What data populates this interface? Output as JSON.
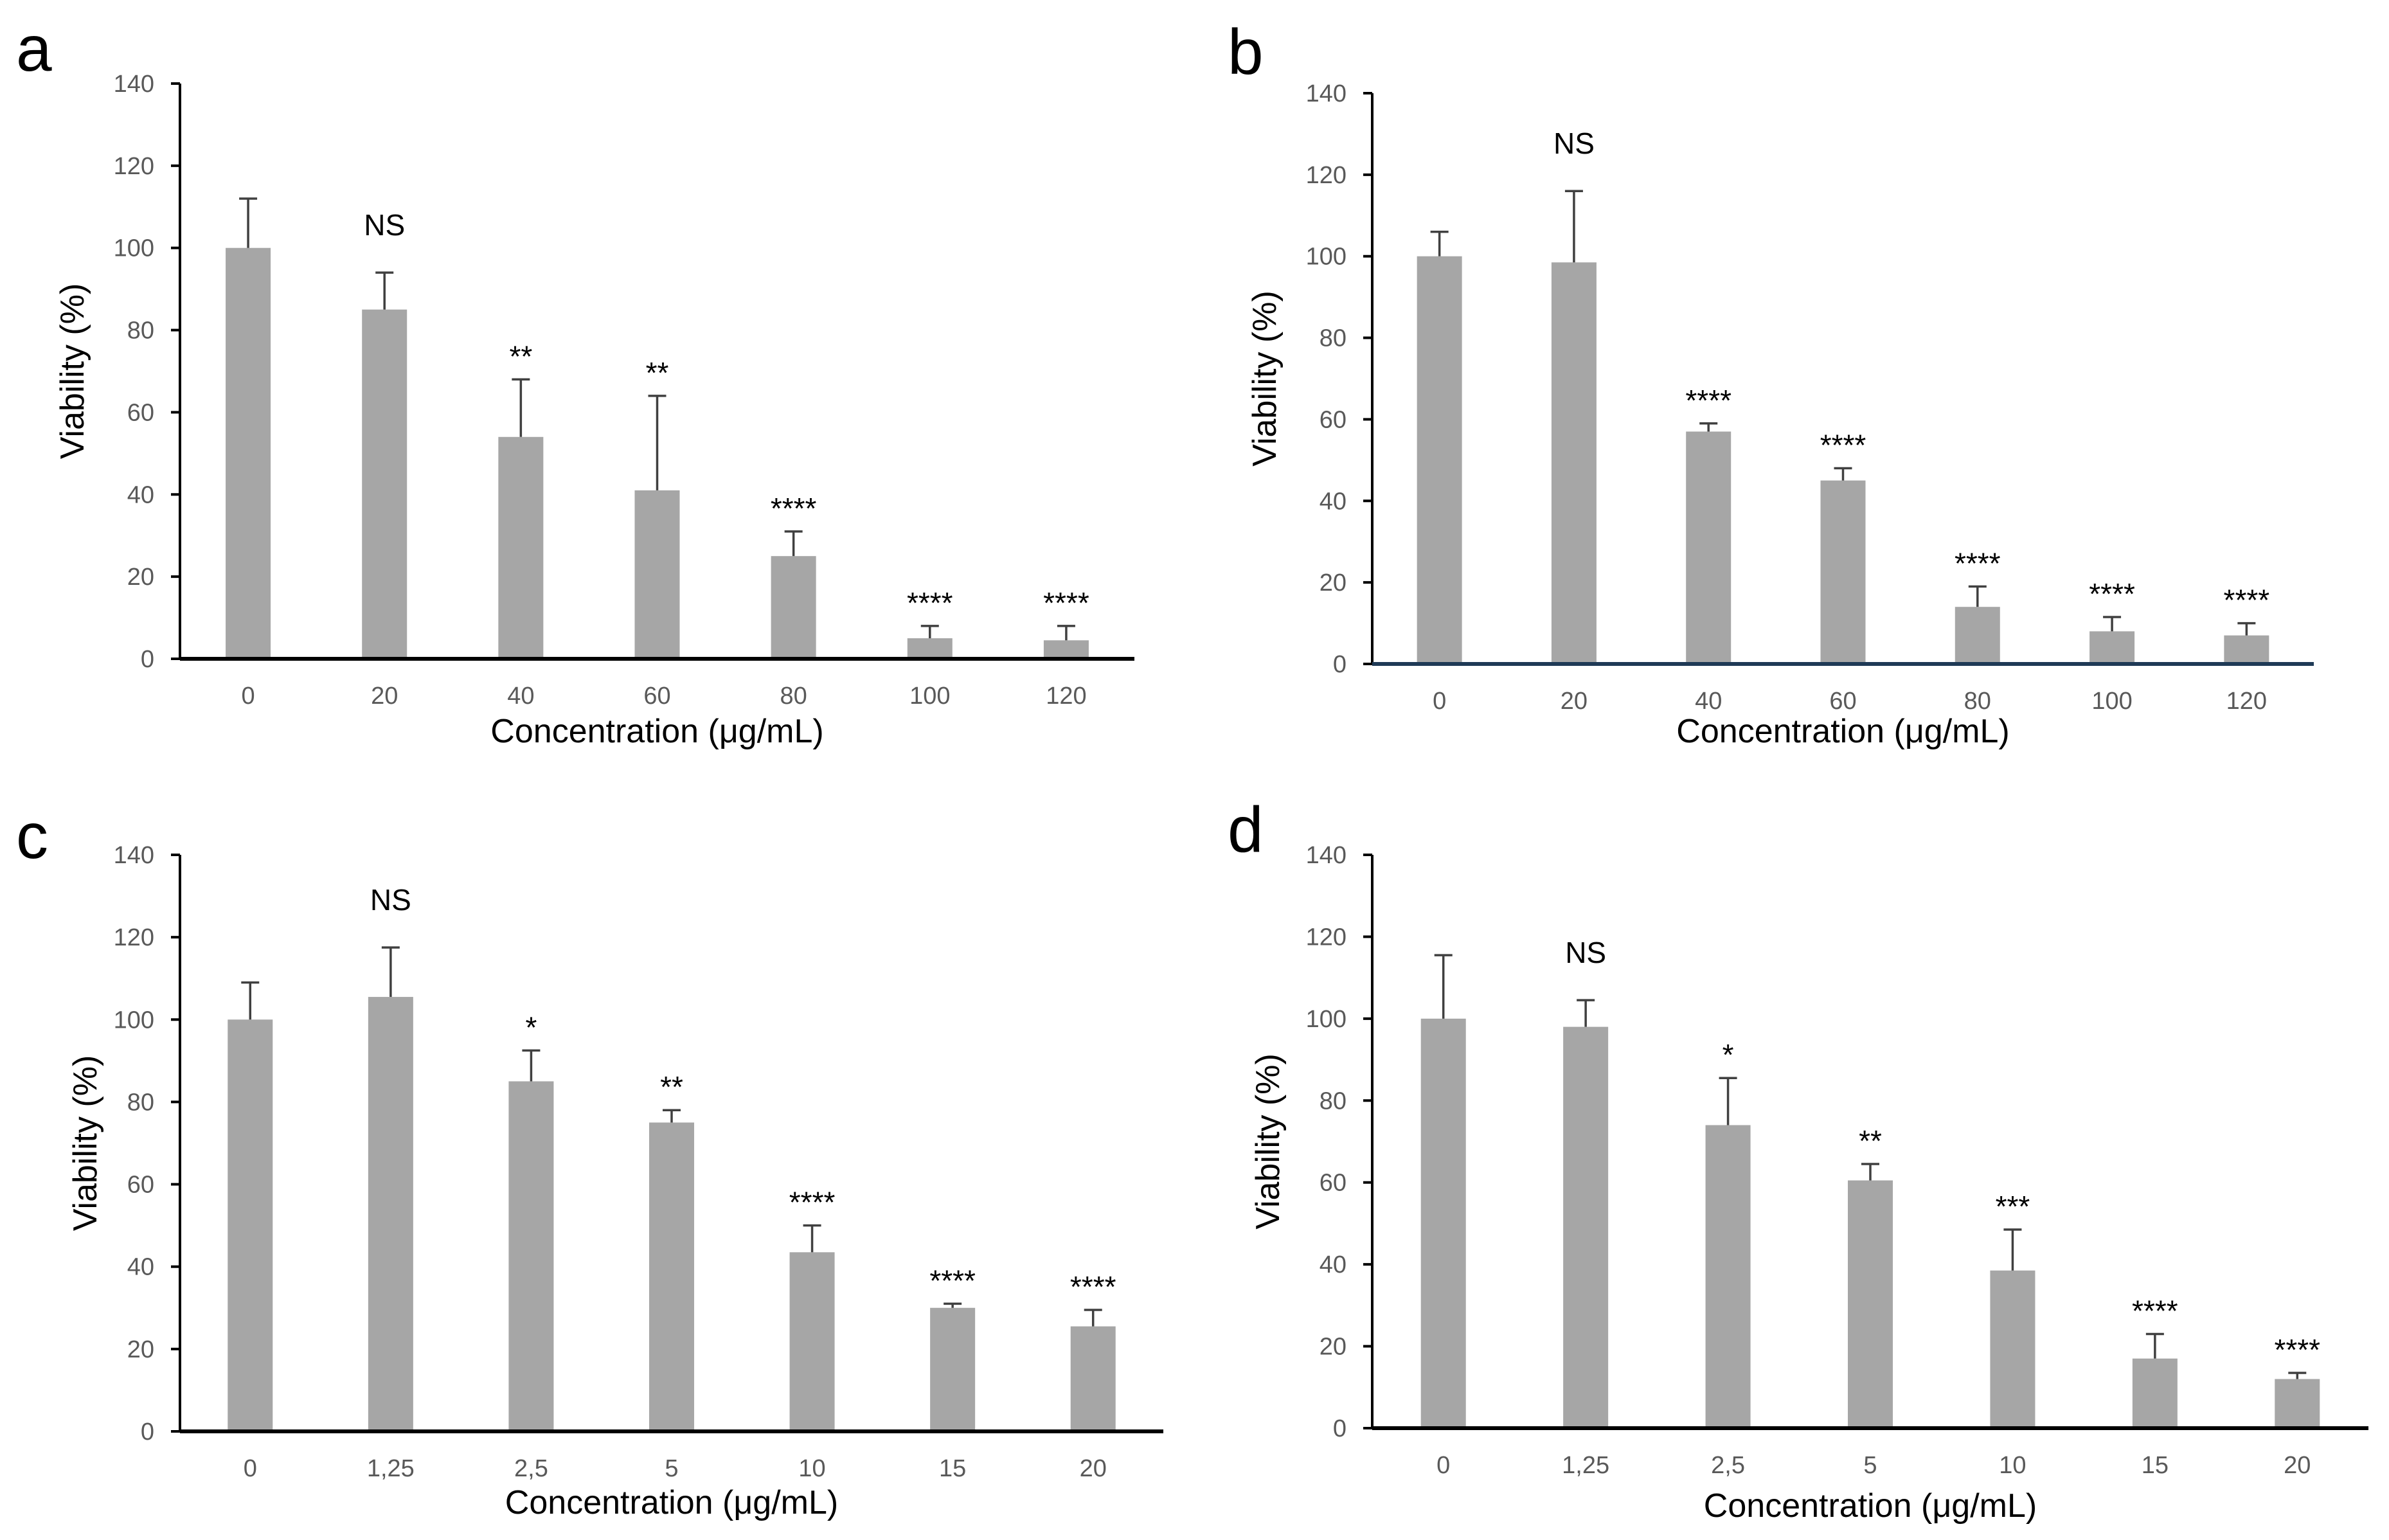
{
  "chart_data": [
    {
      "panel": "a",
      "type": "bar",
      "xlabel": "Concentration (μg/mL)",
      "ylabel": "Viability (%)",
      "ylim": [
        0,
        140
      ],
      "yticks": [
        "0",
        "20",
        "40",
        "60",
        "80",
        "100",
        "120",
        "140"
      ],
      "categories": [
        "0",
        "20",
        "40",
        "60",
        "80",
        "100",
        "120"
      ],
      "values": [
        100,
        85,
        54,
        41,
        25,
        5,
        4.5
      ],
      "errors": [
        12,
        9,
        14,
        23,
        6,
        3,
        3.5
      ],
      "significance": [
        "",
        "NS",
        "**",
        "**",
        "****",
        "****",
        "****"
      ],
      "bar_color": "#a6a6a6",
      "axis_color": "#000000"
    },
    {
      "panel": "b",
      "type": "bar",
      "xlabel": "Concentration (μg/mL)",
      "ylabel": "Viability (%)",
      "ylim": [
        0,
        140
      ],
      "yticks": [
        "0",
        "20",
        "40",
        "60",
        "80",
        "100",
        "120",
        "140"
      ],
      "categories": [
        "0",
        "20",
        "40",
        "60",
        "80",
        "100",
        "120"
      ],
      "values": [
        100,
        98.5,
        57,
        45,
        14,
        8,
        7
      ],
      "errors": [
        6,
        17.5,
        2,
        3,
        5,
        3.5,
        3
      ],
      "significance": [
        "",
        "NS",
        "****",
        "****",
        "****",
        "****",
        "****"
      ],
      "bar_color": "#a6a6a6",
      "axis_color": "#1f3a56"
    },
    {
      "panel": "c",
      "type": "bar",
      "xlabel": "Concentration (μg/mL)",
      "ylabel": "Viability (%)",
      "ylim": [
        0,
        140
      ],
      "yticks": [
        "0",
        "20",
        "40",
        "60",
        "80",
        "100",
        "120",
        "140"
      ],
      "categories": [
        "0",
        "1,25",
        "2,5",
        "5",
        "10",
        "15",
        "20"
      ],
      "values": [
        100,
        105.5,
        85,
        75,
        43.5,
        30,
        25.5
      ],
      "errors": [
        9,
        12,
        7.5,
        3,
        6.5,
        1,
        4
      ],
      "significance": [
        "",
        "NS",
        "*",
        "**",
        "****",
        "****",
        "****"
      ],
      "bar_color": "#a6a6a6",
      "axis_color": "#000000"
    },
    {
      "panel": "d",
      "type": "bar",
      "xlabel": "Concentration (μg/mL)",
      "ylabel": "Viability (%)",
      "ylim": [
        0,
        140
      ],
      "yticks": [
        "0",
        "20",
        "40",
        "60",
        "80",
        "100",
        "120",
        "140"
      ],
      "categories": [
        "0",
        "1,25",
        "2,5",
        "5",
        "10",
        "15",
        "20"
      ],
      "values": [
        100,
        98,
        74,
        60.5,
        38.5,
        17,
        12
      ],
      "errors": [
        15.5,
        6.5,
        11.5,
        4,
        10,
        6,
        1.5
      ],
      "significance": [
        "",
        "NS",
        "*",
        "**",
        "***",
        "****",
        "****"
      ],
      "bar_color": "#a6a6a6",
      "axis_color": "#000000"
    }
  ]
}
